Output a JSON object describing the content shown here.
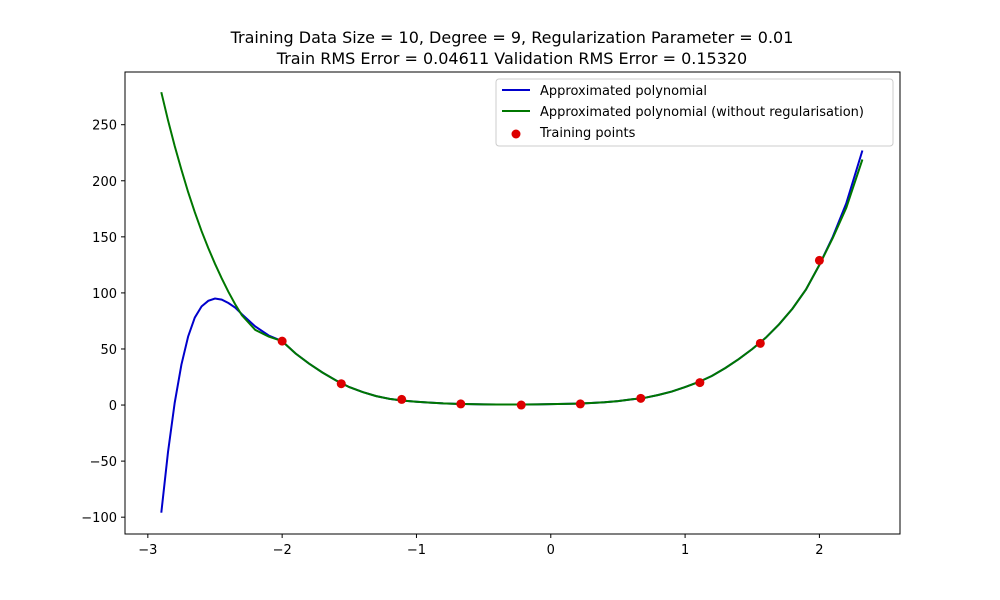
{
  "chart_data": {
    "type": "line",
    "title": "Training Data Size = 10, Degree = 9, Regularization Parameter = 0.01",
    "subtitle": "Train RMS Error = 0.04611 Validation RMS Error = 0.15320",
    "xlabel": "",
    "ylabel": "",
    "xlim": [
      -3.17,
      2.6
    ],
    "ylim": [
      -115,
      297
    ],
    "x_ticks": [
      -3,
      -2,
      -1,
      0,
      1,
      2
    ],
    "y_ticks": [
      -100,
      -50,
      0,
      50,
      100,
      150,
      200,
      250
    ],
    "grid": false,
    "legend_position": "top-right",
    "series": [
      {
        "name": "Approximated polynomial",
        "kind": "line",
        "color": "#0000cc",
        "x": [
          -2.9,
          -2.85,
          -2.8,
          -2.75,
          -2.7,
          -2.65,
          -2.6,
          -2.55,
          -2.5,
          -2.45,
          -2.4,
          -2.35,
          -2.3,
          -2.2,
          -2.1,
          -2.0,
          -1.9,
          -1.8,
          -1.7,
          -1.6,
          -1.5,
          -1.4,
          -1.3,
          -1.2,
          -1.1,
          -1.0,
          -0.9,
          -0.8,
          -0.7,
          -0.6,
          -0.5,
          -0.4,
          -0.3,
          -0.2,
          -0.1,
          0.0,
          0.1,
          0.2,
          0.3,
          0.4,
          0.5,
          0.6,
          0.7,
          0.8,
          0.9,
          1.0,
          1.1,
          1.2,
          1.3,
          1.4,
          1.5,
          1.6,
          1.7,
          1.8,
          1.9,
          2.0,
          2.1,
          2.2,
          2.32
        ],
        "y": [
          -96,
          -42,
          2,
          36,
          61,
          78,
          88,
          93,
          95,
          94,
          91,
          87,
          81,
          70,
          62,
          57,
          46,
          37,
          29,
          22,
          16,
          11.5,
          8,
          5.5,
          4,
          3,
          2.2,
          1.5,
          1,
          0.8,
          0.6,
          0.5,
          0.5,
          0.5,
          0.6,
          0.8,
          1,
          1.3,
          1.8,
          2.5,
          3.5,
          5,
          6.5,
          9,
          12,
          16,
          20.5,
          26,
          33,
          41,
          50,
          60,
          72,
          86,
          103,
          125,
          150,
          180,
          227
        ]
      },
      {
        "name": "Approximated polynomial (without regularisation)",
        "kind": "line",
        "color": "#007700",
        "x": [
          -2.9,
          -2.85,
          -2.8,
          -2.75,
          -2.7,
          -2.65,
          -2.6,
          -2.55,
          -2.5,
          -2.45,
          -2.4,
          -2.35,
          -2.3,
          -2.2,
          -2.1,
          -2.0,
          -1.9,
          -1.8,
          -1.7,
          -1.6,
          -1.5,
          -1.4,
          -1.3,
          -1.2,
          -1.1,
          -1.0,
          -0.9,
          -0.8,
          -0.7,
          -0.6,
          -0.5,
          -0.4,
          -0.3,
          -0.2,
          -0.1,
          0.0,
          0.1,
          0.2,
          0.3,
          0.4,
          0.5,
          0.6,
          0.7,
          0.8,
          0.9,
          1.0,
          1.1,
          1.2,
          1.3,
          1.4,
          1.5,
          1.6,
          1.7,
          1.8,
          1.9,
          2.0,
          2.1,
          2.2,
          2.32
        ],
        "y": [
          279,
          254,
          231,
          210,
          190,
          172,
          155,
          140,
          126,
          113,
          101,
          90,
          80,
          67,
          61,
          57,
          46,
          37,
          29,
          22,
          16,
          11.5,
          8,
          5.5,
          4,
          3,
          2.2,
          1.5,
          1,
          0.8,
          0.6,
          0.5,
          0.5,
          0.5,
          0.6,
          0.8,
          1,
          1.3,
          1.8,
          2.5,
          3.5,
          5,
          6.5,
          9,
          12,
          16,
          20.5,
          26,
          33,
          41,
          50,
          60,
          72,
          86,
          103,
          125,
          149,
          176,
          219
        ]
      },
      {
        "name": "Training points",
        "kind": "scatter",
        "color": "#dd0000",
        "x": [
          -2.0,
          -1.56,
          -1.11,
          -0.67,
          -0.22,
          0.22,
          0.67,
          1.11,
          1.56,
          2.0
        ],
        "y": [
          57,
          19,
          5,
          1,
          0,
          1,
          6,
          20,
          55,
          129
        ]
      }
    ]
  }
}
